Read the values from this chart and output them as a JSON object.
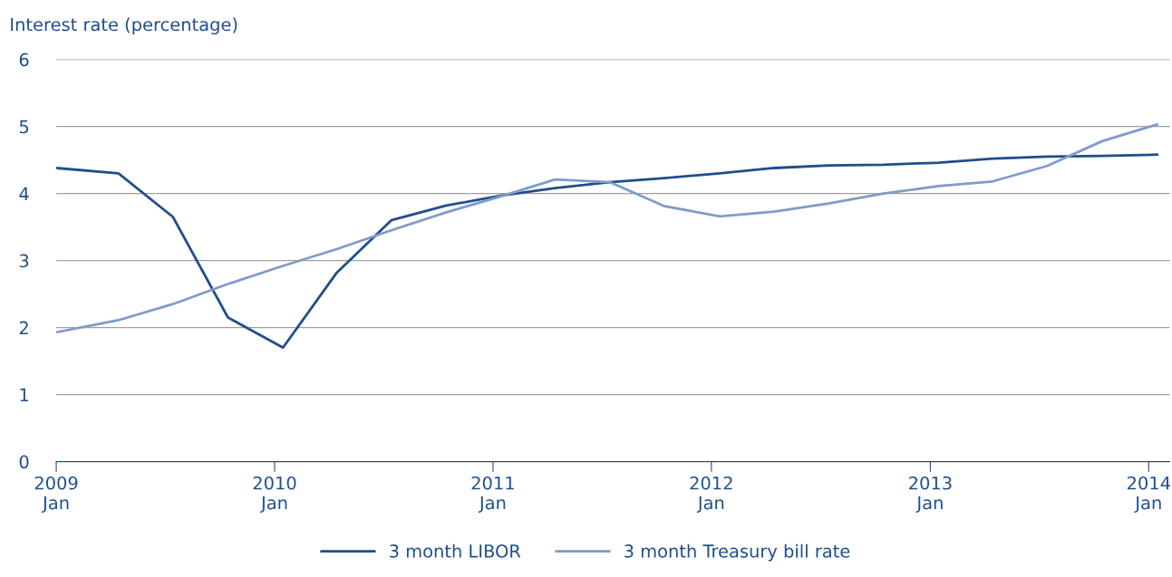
{
  "chart_data": {
    "type": "line",
    "ylabel": "Interest rate (percentage)",
    "x": [
      "2009-01-01",
      "2009-04-15",
      "2009-07-15",
      "2009-10-15",
      "2010-01-15",
      "2010-04-15",
      "2010-07-15",
      "2010-10-15",
      "2011-01-15",
      "2011-04-15",
      "2011-07-15",
      "2011-10-15",
      "2012-01-15",
      "2012-04-15",
      "2012-07-15",
      "2012-10-15",
      "2013-01-15",
      "2013-04-15",
      "2013-07-15",
      "2013-10-15",
      "2014-01-15"
    ],
    "series": [
      {
        "name": "3 month LIBOR",
        "color": "#1f4e8c",
        "values": [
          4.38,
          4.3,
          3.65,
          2.15,
          1.7,
          2.82,
          3.6,
          3.82,
          3.97,
          4.08,
          4.17,
          4.23,
          4.3,
          4.38,
          4.42,
          4.43,
          4.46,
          4.52,
          4.55,
          4.56,
          4.58
        ]
      },
      {
        "name": "3 month Treasury bill rate",
        "color": "#7f9cc9",
        "values": [
          1.93,
          2.11,
          2.35,
          2.65,
          2.92,
          3.17,
          3.45,
          3.72,
          3.96,
          4.21,
          4.17,
          3.81,
          3.66,
          3.73,
          3.85,
          4.0,
          4.11,
          4.18,
          4.41,
          4.78,
          5.03
        ]
      }
    ],
    "xlim": [
      "2009-01-01",
      "2014-02-05"
    ],
    "xticks": [
      {
        "value": "2009-01-01",
        "label": "2009\nJan"
      },
      {
        "value": "2010-01-01",
        "label": "2010\nJan"
      },
      {
        "value": "2011-01-01",
        "label": "2011\nJan"
      },
      {
        "value": "2012-01-01",
        "label": "2012\nJan"
      },
      {
        "value": "2013-01-01",
        "label": "2013\nJan"
      },
      {
        "value": "2014-01-01",
        "label": "2014\nJan"
      }
    ],
    "ylim": [
      0,
      6
    ],
    "yticks": [
      0,
      1,
      2,
      3,
      4,
      5,
      6
    ],
    "grid": "y",
    "legend": "bottom",
    "marker": "none",
    "line_style": "solid"
  }
}
